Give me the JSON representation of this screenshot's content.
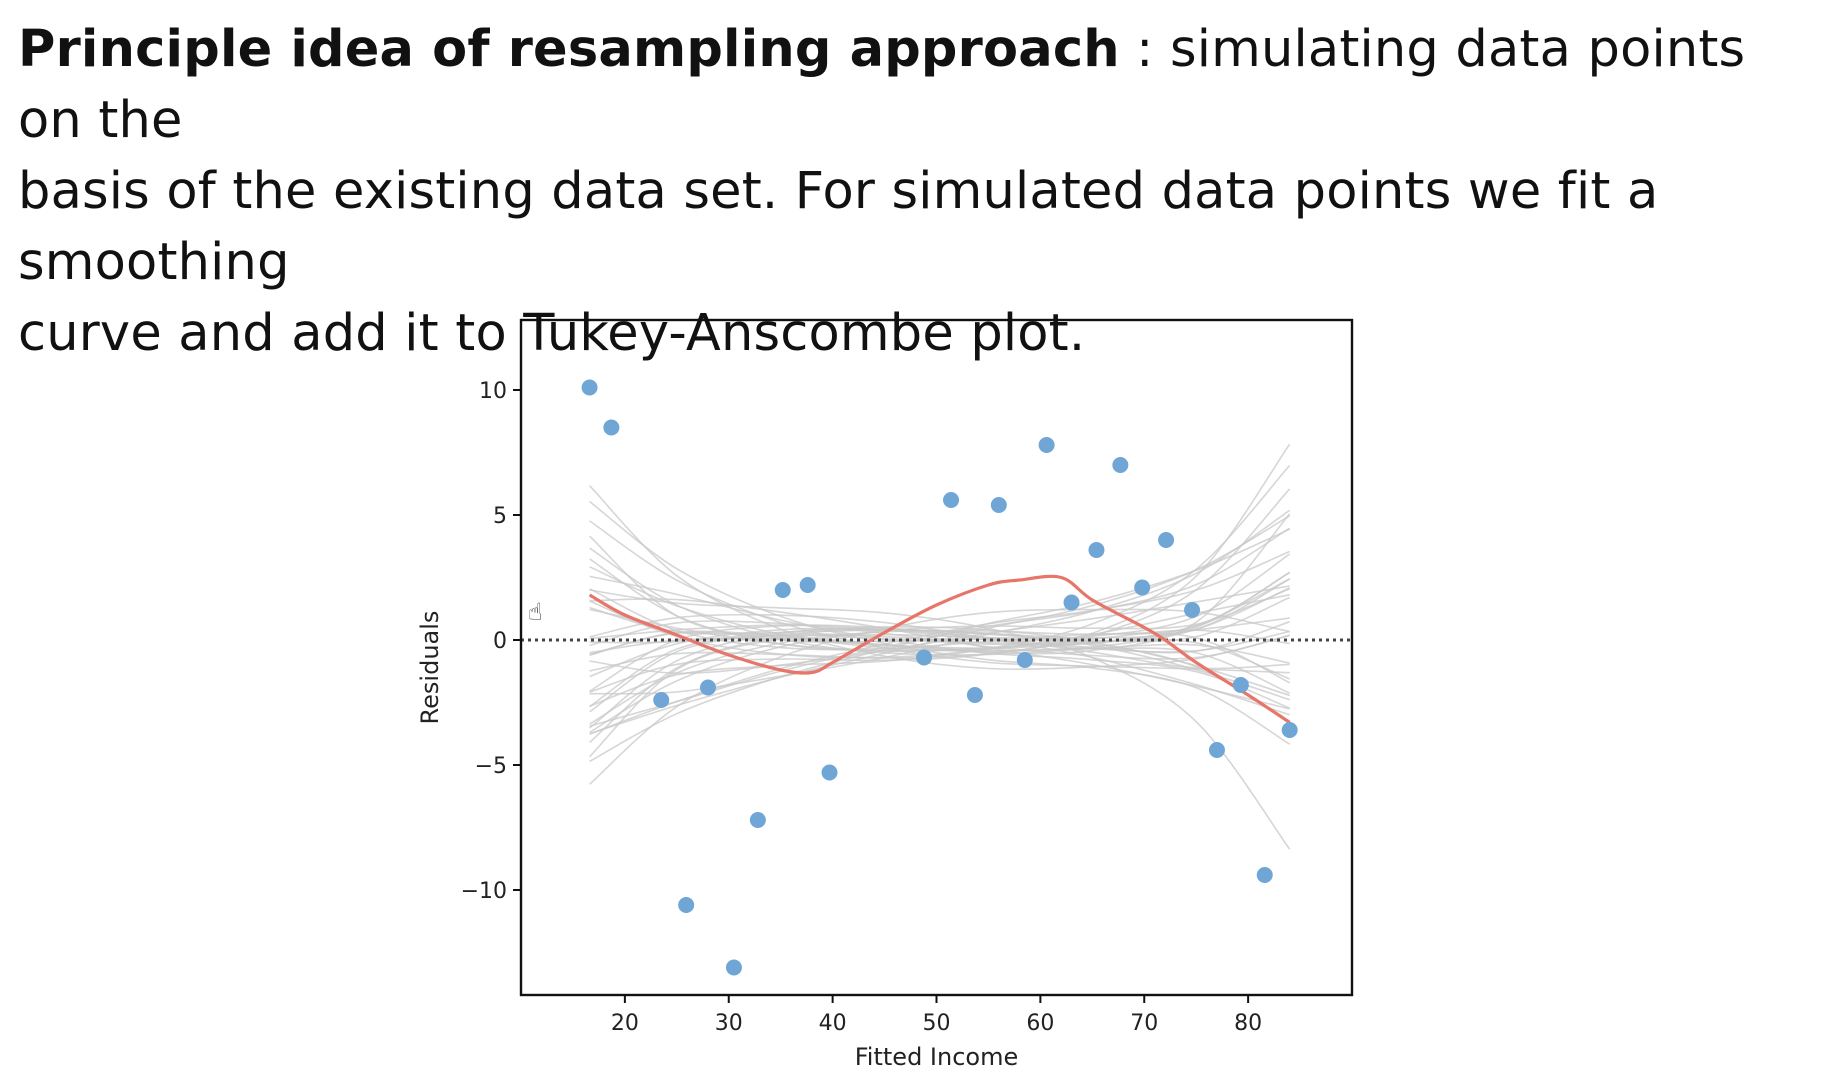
{
  "slide": {
    "bold_lead": "Principle idea of resampling approach",
    "line1_rest": " : simulating data points on the",
    "line2": "basis of the existing data set. For simulated data points we fit a smoothing",
    "line3": "curve and add it to Tukey-Anscombe plot."
  },
  "colors": {
    "points": "#6fa6d6",
    "smooth": "#e8756a",
    "sim_curves": "#c8c8c8",
    "zero_line": "#444444",
    "frame": "#111111"
  },
  "chart_data": {
    "type": "scatter",
    "title": "",
    "xlabel": "Fitted Income",
    "ylabel": "Residuals",
    "xlim": [
      15,
      85
    ],
    "ylim": [
      -14,
      14
    ],
    "xticks": [
      20,
      30,
      40,
      50,
      60,
      70,
      80
    ],
    "yticks": [
      -10,
      -5,
      0,
      5,
      10
    ],
    "ytick_labels": [
      "−10",
      "−5",
      "0",
      "5",
      "10"
    ],
    "zero_reference_line": 0,
    "grid": false,
    "points": [
      {
        "x": 16.6,
        "y": 10.1
      },
      {
        "x": 18.7,
        "y": 8.5
      },
      {
        "x": 23.5,
        "y": -2.4
      },
      {
        "x": 25.9,
        "y": -10.6
      },
      {
        "x": 28.0,
        "y": -1.9
      },
      {
        "x": 30.5,
        "y": -13.1
      },
      {
        "x": 32.8,
        "y": -7.2
      },
      {
        "x": 35.2,
        "y": 2.0
      },
      {
        "x": 37.6,
        "y": 2.2
      },
      {
        "x": 39.7,
        "y": -5.3
      },
      {
        "x": 48.8,
        "y": -0.7
      },
      {
        "x": 51.4,
        "y": 5.6
      },
      {
        "x": 53.7,
        "y": -2.2
      },
      {
        "x": 56.0,
        "y": 5.4
      },
      {
        "x": 58.5,
        "y": -0.8
      },
      {
        "x": 60.6,
        "y": 7.8
      },
      {
        "x": 63.0,
        "y": 1.5
      },
      {
        "x": 65.4,
        "y": 3.6
      },
      {
        "x": 67.7,
        "y": 7.0
      },
      {
        "x": 69.8,
        "y": 2.1
      },
      {
        "x": 72.1,
        "y": 4.0
      },
      {
        "x": 74.6,
        "y": 1.2
      },
      {
        "x": 77.0,
        "y": -4.4
      },
      {
        "x": 79.3,
        "y": -1.8
      },
      {
        "x": 81.6,
        "y": -9.4
      },
      {
        "x": 84.0,
        "y": -3.6
      }
    ],
    "smooth_curve": {
      "x": [
        16.6,
        20,
        25,
        30,
        35,
        38,
        40,
        45,
        50,
        55,
        58,
        62,
        65,
        70,
        72,
        75,
        80,
        84
      ],
      "y": [
        1.8,
        1.0,
        0.2,
        -0.6,
        -1.2,
        -1.3,
        -0.9,
        0.3,
        1.4,
        2.2,
        2.4,
        2.5,
        1.6,
        0.5,
        0.0,
        -0.9,
        -2.2,
        -3.3
      ]
    },
    "simulated_curves": {
      "x": [
        16.6,
        25,
        35,
        45,
        55,
        65,
        75,
        84
      ],
      "count": 40,
      "band_halfwidth": [
        6.0,
        3.8,
        2.6,
        2.3,
        2.3,
        2.5,
        4.0,
        7.0
      ]
    }
  }
}
